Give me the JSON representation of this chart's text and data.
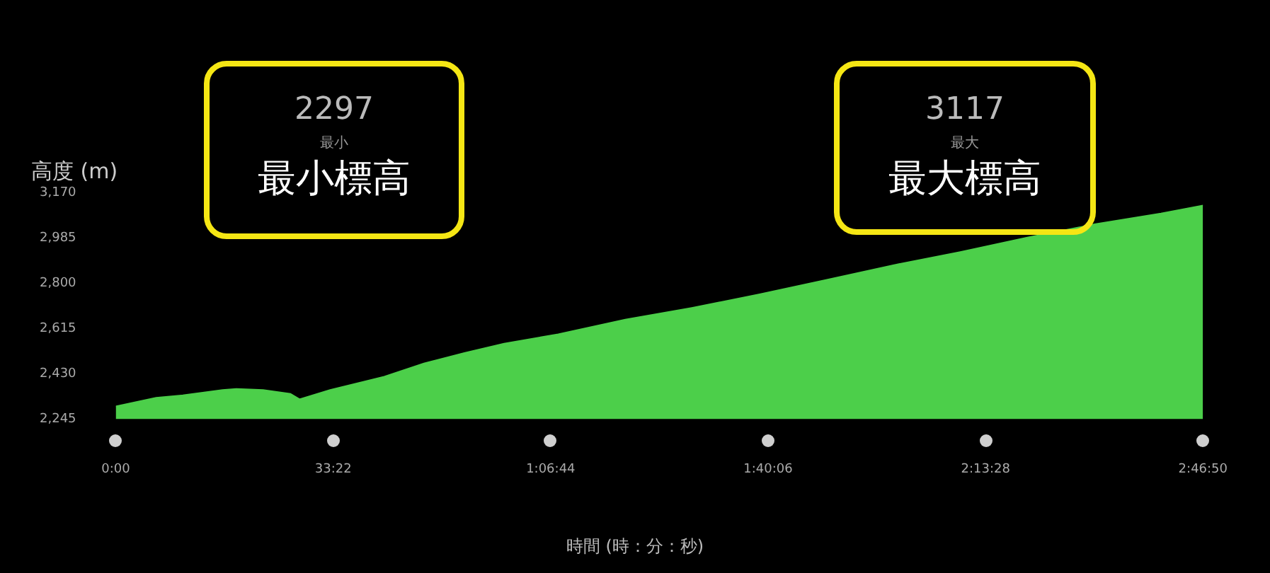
{
  "chart_data": {
    "type": "area",
    "ylabel": "高度 (m)",
    "xlabel": "時間 (時：分：秒)",
    "annotations": [
      "2297",
      "最小",
      "最小標高",
      "3117",
      "最大",
      "最大標高"
    ],
    "series": [
      {
        "color": "#4ccf4a",
        "x": [
          0,
          6.2,
          10.3,
          16.4,
          18.5,
          22.6,
          26.8,
          28.2,
          32.9,
          41.2,
          47.3,
          53.5,
          59.6,
          67.9,
          78.2,
          88.4,
          98.8,
          109,
          119.3,
          129.6,
          139.9,
          150.2,
          160.4,
          166.8333
        ],
        "values": [
          2297,
          2332,
          2342,
          2364,
          2368,
          2364,
          2348,
          2326,
          2364,
          2418,
          2472,
          2515,
          2553,
          2591,
          2651,
          2699,
          2754,
          2813,
          2873,
          2927,
          2986,
          3040,
          3084,
          3117
        ]
      }
    ],
    "xlim": [
      0,
      166.8333
    ],
    "xticks": [
      {
        "value": 0,
        "label": "0:00"
      },
      {
        "value": 33.3667,
        "label": "33:22"
      },
      {
        "value": 66.7333,
        "label": "1:06:44"
      },
      {
        "value": 100.1,
        "label": "1:40:06"
      },
      {
        "value": 133.4667,
        "label": "2:13:28"
      },
      {
        "value": 166.8333,
        "label": "2:46:50"
      }
    ],
    "ylim": [
      2245,
      3170
    ],
    "yticks": [
      {
        "value": 2245,
        "label": "2,245"
      },
      {
        "value": 2430,
        "label": "2,430"
      },
      {
        "value": 2615,
        "label": "2,615"
      },
      {
        "value": 2800,
        "label": "2,800"
      },
      {
        "value": 2985,
        "label": "2,985"
      },
      {
        "value": 3170,
        "label": "3,170"
      }
    ],
    "grid": false,
    "legend": false,
    "marker": "none"
  }
}
